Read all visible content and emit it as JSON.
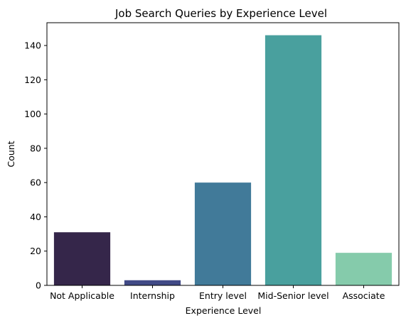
{
  "chart_data": {
    "type": "bar",
    "title": "Job Search Queries by Experience Level",
    "xlabel": "Experience Level",
    "ylabel": "Count",
    "categories": [
      "Not Applicable",
      "Internship",
      "Entry level",
      "Mid-Senior level",
      "Associate"
    ],
    "values": [
      31,
      3,
      60,
      146,
      19
    ],
    "colors": [
      "#35264a",
      "#414a86",
      "#417a99",
      "#49a09e",
      "#85cbab"
    ],
    "ylim": [
      0,
      153.3
    ],
    "yticks": [
      0,
      20,
      40,
      60,
      80,
      100,
      120,
      140
    ],
    "grid": false,
    "legend": "none"
  }
}
